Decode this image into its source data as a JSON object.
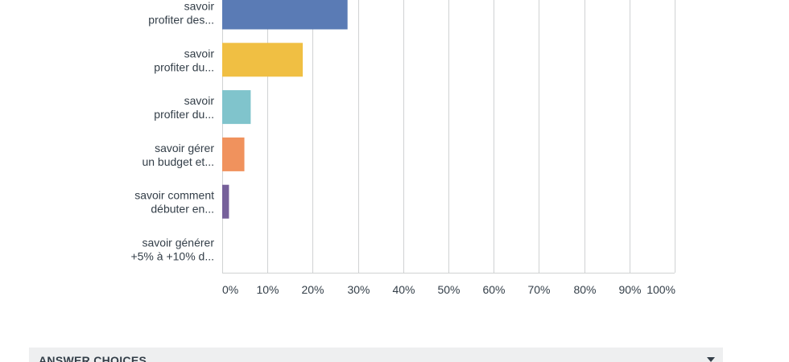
{
  "chart_data": {
    "type": "bar",
    "orientation": "horizontal",
    "categories": [
      [
        "savoir",
        "profiter des..."
      ],
      [
        "savoir",
        "profiter du..."
      ],
      [
        "savoir",
        "profiter du..."
      ],
      [
        "savoir gérer",
        "un budget et..."
      ],
      [
        "savoir comment",
        "débuter en..."
      ],
      [
        "savoir générer",
        "+5% à +10% d..."
      ]
    ],
    "values": [
      27.7,
      17.8,
      6.3,
      4.9,
      1.5,
      0
    ],
    "colors": [
      "#5a7bb5",
      "#f0bf43",
      "#80c4cc",
      "#f0925d",
      "#76609a",
      "#9aa0a8"
    ],
    "xlim": [
      0,
      100
    ],
    "ticks": [
      "0%",
      "10%",
      "20%",
      "30%",
      "40%",
      "50%",
      "60%",
      "70%",
      "80%",
      "90%",
      "100%"
    ],
    "grid": true,
    "title": "",
    "xlabel": "",
    "ylabel": ""
  },
  "table_header": {
    "label": "ANSWER CHOICES",
    "sort_icon": "caret-down-icon"
  }
}
